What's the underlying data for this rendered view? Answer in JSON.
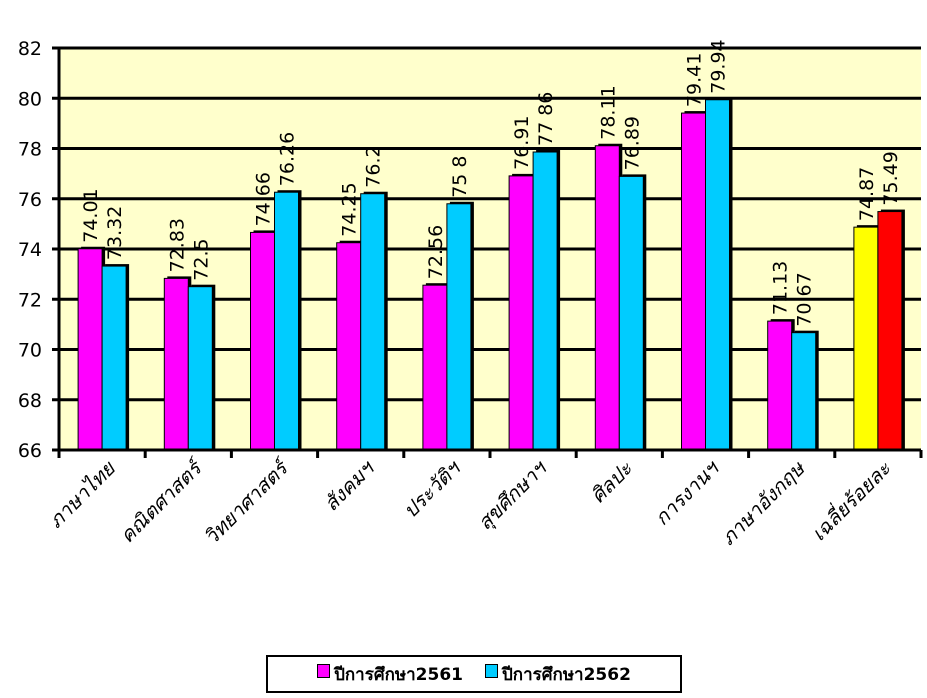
{
  "chart_data": {
    "type": "bar",
    "categories": [
      "ภาษาไทย",
      "คณิตศาสตร์",
      "วิทยาศาสตร์",
      "สังคมฯ",
      "ประวัติฯ",
      "สุขศึกษาฯ",
      "ศิลปะ",
      "การงานฯ",
      "ภาษาอังกฤษ",
      "เฉลี่ยร้อยละ"
    ],
    "series": [
      {
        "name": "ปีการศึกษา2561",
        "color": "#ff00ff",
        "values": [
          74.01,
          72.83,
          74.66,
          74.25,
          72.56,
          76.91,
          78.11,
          79.41,
          71.13,
          74.87
        ],
        "labels": [
          "74.01",
          "72.83",
          "74.66",
          "74.25",
          "72.56",
          "76.91",
          "78.11",
          "79.41",
          "71.13",
          "74.87"
        ]
      },
      {
        "name": "ปีการศึกษา2562",
        "color": "#00ccff",
        "values": [
          73.32,
          72.5,
          76.26,
          76.2,
          75.8,
          77.86,
          76.89,
          79.94,
          70.67,
          75.49
        ],
        "labels": [
          "73.32",
          "72.5",
          "76.26",
          "76.2",
          "75 8",
          "77 86",
          "76.89",
          "79.94",
          "70.67",
          "75.49"
        ]
      }
    ],
    "highlight_last_category_colors": [
      "#ffff00",
      "#ff0000"
    ],
    "yticks": [
      "82",
      "80",
      "78",
      "76",
      "74",
      "72",
      "70",
      "68",
      "66"
    ],
    "ylim": [
      66,
      82
    ],
    "grid": true,
    "plot_background": "#ffffcc",
    "legend_position": "bottom"
  }
}
